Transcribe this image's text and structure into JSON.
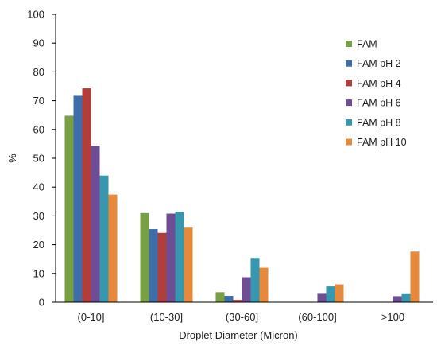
{
  "chart_data": {
    "type": "bar",
    "title": "",
    "xlabel": "Droplet Diameter (Micron)",
    "ylabel": "%",
    "ylim": [
      0,
      100
    ],
    "yticks": [
      0,
      10,
      20,
      30,
      40,
      50,
      60,
      70,
      80,
      90,
      100
    ],
    "grid": false,
    "legend_position": "right",
    "categories": [
      "(0-10]",
      "(10-30]",
      "(30-60]",
      "(60-100]",
      ">100"
    ],
    "series": [
      {
        "name": "FAM",
        "color": "#77A043",
        "values": [
          64.8,
          31.0,
          3.5,
          0,
          0
        ]
      },
      {
        "name": "FAM pH 2",
        "color": "#3F6DAA",
        "values": [
          71.7,
          25.4,
          2.2,
          0,
          0
        ]
      },
      {
        "name": "FAM pH 4",
        "color": "#B13E3B",
        "values": [
          74.3,
          24.1,
          0.8,
          0,
          0
        ]
      },
      {
        "name": "FAM pH 6",
        "color": "#6E4D94",
        "values": [
          54.4,
          30.8,
          8.7,
          3.2,
          2.1
        ]
      },
      {
        "name": "FAM pH 8",
        "color": "#3797AE",
        "values": [
          44.0,
          31.4,
          15.4,
          5.5,
          3.1
        ]
      },
      {
        "name": "FAM pH 10",
        "color": "#E6893A",
        "values": [
          37.4,
          25.9,
          12.0,
          6.2,
          17.6
        ]
      }
    ]
  }
}
